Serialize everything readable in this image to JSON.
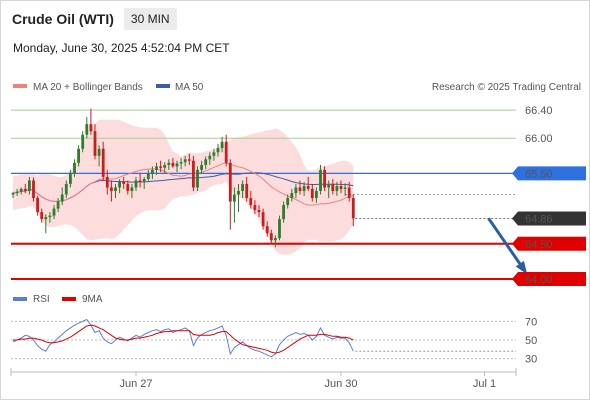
{
  "header": {
    "title": "Crude Oil (WTI)",
    "timeframe": "30 MIN",
    "datetime": "Monday, June 30, 2025 4:52:04 PM CET"
  },
  "legend": {
    "ma20_bb": "MA 20 + Bollinger Bands",
    "ma50": "MA 50",
    "attribution": "Research © 2025 Trading Central",
    "rsi": "RSI",
    "rsi_ma": "9MA"
  },
  "colors": {
    "up": "#2d7d2d",
    "down": "#c81e1e",
    "bands": "#fcd6d6",
    "ma20": "#f08080",
    "ma50": "#3a5fa8",
    "support": "#e00000",
    "pivot": "#2f6fde",
    "resistance": "#a8d08d",
    "arrow": "#2b5ea7",
    "last_price": "#333333",
    "rsi": "#5b7fd6"
  },
  "chart_data": [
    {
      "type": "candlestick",
      "ylim": [
        63.9,
        66.6
      ],
      "x_labels": [
        {
          "label": "Jun 27",
          "index": 30
        },
        {
          "label": "Jun 30",
          "index": 80
        },
        {
          "label": "Jul 1",
          "index": 115
        }
      ],
      "y_ticks": [
        66.4,
        66.0
      ],
      "levels": [
        {
          "value": 66.4,
          "label": "66.40",
          "kind": "resistance"
        },
        {
          "value": 66.0,
          "label": "66.00",
          "kind": "resistance"
        },
        {
          "value": 65.5,
          "label": "65.50",
          "kind": "pivot"
        },
        {
          "value": 64.5,
          "label": "64.50",
          "kind": "support"
        },
        {
          "value": 64.0,
          "label": "64.00",
          "kind": "support"
        }
      ],
      "last_price": {
        "value": 64.86,
        "label": "64.86"
      },
      "projection": {
        "from": {
          "index": 116,
          "value": 64.86
        },
        "to": {
          "index": 125,
          "value": 64.1
        }
      },
      "candles": [
        [
          65.2,
          65.24,
          65.15,
          65.22
        ],
        [
          65.22,
          65.28,
          65.18,
          65.24
        ],
        [
          65.24,
          65.3,
          65.2,
          65.28
        ],
        [
          65.28,
          65.35,
          65.22,
          65.25
        ],
        [
          65.25,
          65.45,
          65.2,
          65.4
        ],
        [
          65.4,
          65.44,
          65.1,
          65.15
        ],
        [
          65.15,
          65.18,
          64.9,
          64.95
        ],
        [
          64.95,
          65.0,
          64.8,
          64.85
        ],
        [
          64.85,
          64.92,
          64.65,
          64.88
        ],
        [
          64.88,
          64.95,
          64.8,
          64.9
        ],
        [
          64.9,
          65.05,
          64.85,
          65.0
        ],
        [
          65.0,
          65.15,
          64.95,
          65.1
        ],
        [
          65.1,
          65.3,
          65.05,
          65.2
        ],
        [
          65.2,
          65.4,
          65.15,
          65.35
        ],
        [
          65.35,
          65.55,
          65.3,
          65.5
        ],
        [
          65.5,
          65.7,
          65.45,
          65.65
        ],
        [
          65.65,
          65.9,
          65.6,
          65.85
        ],
        [
          65.85,
          66.1,
          65.8,
          66.05
        ],
        [
          66.05,
          66.3,
          66.0,
          66.2
        ],
        [
          66.2,
          66.42,
          66.05,
          66.1
        ],
        [
          66.1,
          66.2,
          65.7,
          65.75
        ],
        [
          65.75,
          65.9,
          65.6,
          65.85
        ],
        [
          65.85,
          65.95,
          65.4,
          65.45
        ],
        [
          65.45,
          65.55,
          65.2,
          65.3
        ],
        [
          65.3,
          65.4,
          65.1,
          65.25
        ],
        [
          65.25,
          65.35,
          65.15,
          65.3
        ],
        [
          65.3,
          65.42,
          65.22,
          65.38
        ],
        [
          65.38,
          65.45,
          65.28,
          65.35
        ],
        [
          65.35,
          65.4,
          65.2,
          65.25
        ],
        [
          65.25,
          65.35,
          65.15,
          65.3
        ],
        [
          65.3,
          65.45,
          65.25,
          65.4
        ],
        [
          65.4,
          65.5,
          65.3,
          65.38
        ],
        [
          65.38,
          65.45,
          65.28,
          65.42
        ],
        [
          65.42,
          65.55,
          65.38,
          65.5
        ],
        [
          65.5,
          65.6,
          65.42,
          65.55
        ],
        [
          65.55,
          65.65,
          65.48,
          65.6
        ],
        [
          65.6,
          65.68,
          65.52,
          65.58
        ],
        [
          65.58,
          65.66,
          65.5,
          65.62
        ],
        [
          65.62,
          65.7,
          65.55,
          65.65
        ],
        [
          65.65,
          65.72,
          65.58,
          65.6
        ],
        [
          65.6,
          65.68,
          65.52,
          65.64
        ],
        [
          65.64,
          65.72,
          65.56,
          65.66
        ],
        [
          65.66,
          65.75,
          65.6,
          65.7
        ],
        [
          65.7,
          65.78,
          65.62,
          65.68
        ],
        [
          65.68,
          65.75,
          65.25,
          65.3
        ],
        [
          65.3,
          65.6,
          65.25,
          65.55
        ],
        [
          65.55,
          65.68,
          65.5,
          65.62
        ],
        [
          65.62,
          65.74,
          65.56,
          65.7
        ],
        [
          65.7,
          65.8,
          65.62,
          65.75
        ],
        [
          65.75,
          65.85,
          65.68,
          65.8
        ],
        [
          65.8,
          65.92,
          65.74,
          65.86
        ],
        [
          65.86,
          66.02,
          65.8,
          65.95
        ],
        [
          65.95,
          66.05,
          65.6,
          65.65
        ],
        [
          65.65,
          65.7,
          64.7,
          65.1
        ],
        [
          65.1,
          65.3,
          64.8,
          65.2
        ],
        [
          65.2,
          65.35,
          64.95,
          65.25
        ],
        [
          65.25,
          65.4,
          65.15,
          65.35
        ],
        [
          65.35,
          65.45,
          65.1,
          65.15
        ],
        [
          65.15,
          65.25,
          65.0,
          65.05
        ],
        [
          65.05,
          65.12,
          64.92,
          64.98
        ],
        [
          64.98,
          65.05,
          64.88,
          64.95
        ],
        [
          64.95,
          65.0,
          64.7,
          64.75
        ],
        [
          64.75,
          64.82,
          64.6,
          64.65
        ],
        [
          64.65,
          64.7,
          64.5,
          64.55
        ],
        [
          64.55,
          64.62,
          64.45,
          64.58
        ],
        [
          64.58,
          64.9,
          64.55,
          64.85
        ],
        [
          64.85,
          65.1,
          64.8,
          65.05
        ],
        [
          65.05,
          65.2,
          65.0,
          65.15
        ],
        [
          65.15,
          65.28,
          65.1,
          65.22
        ],
        [
          65.22,
          65.35,
          65.15,
          65.3
        ],
        [
          65.3,
          65.4,
          65.2,
          65.25
        ],
        [
          65.25,
          65.38,
          65.18,
          65.32
        ],
        [
          65.32,
          65.45,
          65.25,
          65.28
        ],
        [
          65.28,
          65.35,
          65.1,
          65.15
        ],
        [
          65.15,
          65.3,
          65.08,
          65.25
        ],
        [
          65.25,
          65.62,
          65.2,
          65.55
        ],
        [
          65.55,
          65.6,
          65.25,
          65.3
        ],
        [
          65.3,
          65.4,
          65.15,
          65.35
        ],
        [
          65.35,
          65.42,
          65.2,
          65.25
        ],
        [
          65.25,
          65.38,
          65.18,
          65.32
        ],
        [
          65.32,
          65.4,
          65.22,
          65.28
        ],
        [
          65.28,
          65.36,
          65.18,
          65.3
        ],
        [
          65.3,
          65.38,
          65.1,
          65.15
        ],
        [
          65.15,
          65.2,
          64.75,
          64.86
        ]
      ]
    },
    {
      "type": "line",
      "ylim": [
        20,
        80
      ],
      "y_ticks": [
        70,
        50,
        30
      ],
      "series": [
        {
          "name": "RSI",
          "values": [
            48,
            50,
            52,
            55,
            54,
            50,
            44,
            40,
            38,
            45,
            48,
            52,
            56,
            60,
            63,
            66,
            68,
            70,
            72,
            66,
            58,
            60,
            52,
            48,
            46,
            50,
            53,
            51,
            49,
            52,
            55,
            53,
            56,
            58,
            60,
            61,
            59,
            61,
            62,
            58,
            60,
            61,
            63,
            60,
            44,
            52,
            56,
            58,
            60,
            61,
            63,
            65,
            55,
            35,
            42,
            45,
            48,
            44,
            41,
            39,
            38,
            36,
            34,
            32,
            35,
            45,
            50,
            54,
            56,
            58,
            56,
            57,
            55,
            50,
            54,
            63,
            55,
            53,
            51,
            53,
            52,
            52,
            47,
            38
          ]
        },
        {
          "name": "9MA",
          "values": [
            50,
            50,
            51,
            51,
            52,
            52,
            51,
            50,
            48,
            47,
            47,
            48,
            49,
            51,
            53,
            56,
            59,
            62,
            65,
            66,
            65,
            63,
            61,
            58,
            55,
            52,
            51,
            50,
            50,
            51,
            52,
            52,
            53,
            54,
            55,
            57,
            58,
            59,
            59,
            60,
            60,
            60,
            60,
            60,
            56,
            55,
            55,
            55,
            55,
            56,
            58,
            59,
            59,
            55,
            51,
            48,
            45,
            44,
            43,
            42,
            41,
            40,
            39,
            37,
            36,
            37,
            39,
            42,
            45,
            48,
            51,
            53,
            55,
            55,
            55,
            56,
            56,
            55,
            54,
            54,
            53,
            53,
            52,
            50
          ]
        }
      ]
    }
  ]
}
